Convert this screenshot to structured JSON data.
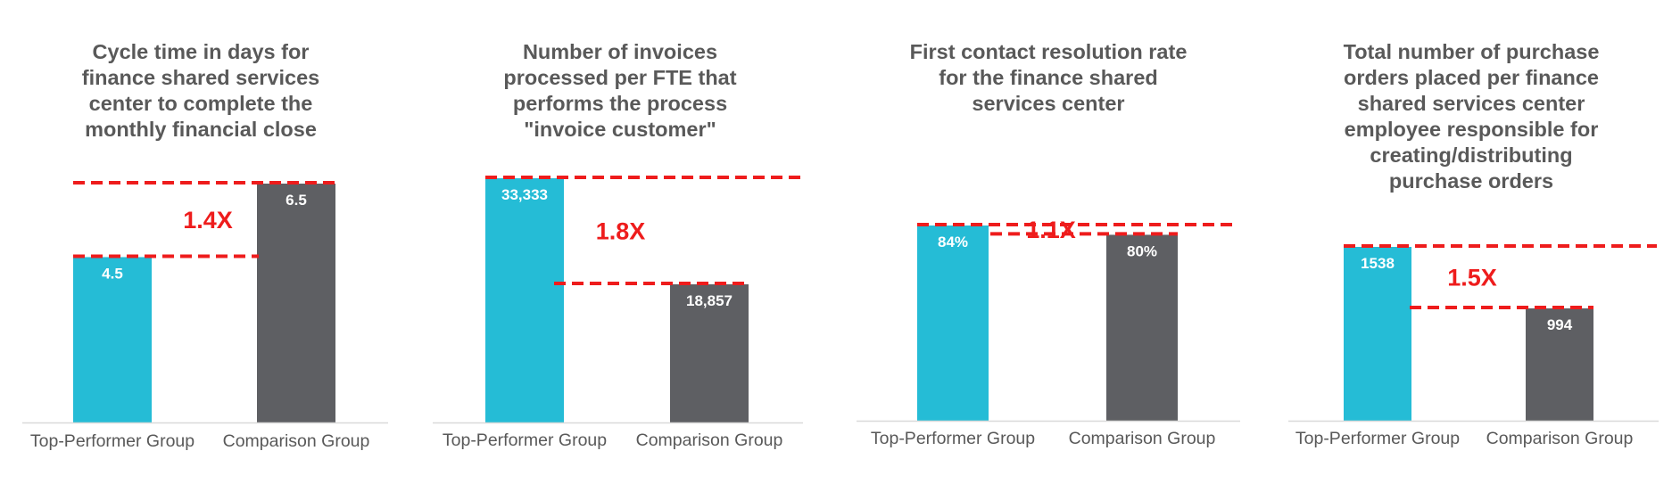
{
  "colors": {
    "top_performer": "#25BCD6",
    "comparison": "#5E5F63",
    "guide_line": "#EE1C1C",
    "ratio_text": "#EE1C1C",
    "title_text": "#595959",
    "axis": "#D9D9D9"
  },
  "chart_data": [
    {
      "type": "bar",
      "title": "Cycle time in days for finance shared services center to complete the monthly financial close",
      "title_lines": [
        "Cycle time in days for",
        "finance shared services",
        "center to complete the",
        "monthly financial close"
      ],
      "categories": [
        "Top-Performer Group",
        "Comparison Group"
      ],
      "values": [
        4.5,
        6.5
      ],
      "value_labels": [
        "4.5",
        "6.5"
      ],
      "ratio_label": "1.4X"
    },
    {
      "type": "bar",
      "title": "Number of invoices processed per FTE that performs the process \"invoice customer\"",
      "title_lines": [
        "Number of invoices",
        "processed per FTE that",
        "performs the process",
        "\"invoice customer\""
      ],
      "categories": [
        "Top-Performer Group",
        "Comparison Group"
      ],
      "values": [
        33333,
        18857
      ],
      "value_labels": [
        "33,333",
        "18,857"
      ],
      "ratio_label": "1.8X"
    },
    {
      "type": "bar",
      "title": "First contact resolution rate for the finance shared services center",
      "title_lines": [
        "First contact resolution rate",
        "for the finance shared",
        "services center"
      ],
      "categories": [
        "Top-Performer Group",
        "Comparison Group"
      ],
      "values": [
        84,
        80
      ],
      "value_labels": [
        "84%",
        "80%"
      ],
      "ratio_label": "1.1X"
    },
    {
      "type": "bar",
      "title": "Total number of purchase orders placed per finance shared services center employee responsible for creating/distributing purchase orders",
      "title_lines": [
        "Total number of purchase",
        "orders placed per finance",
        "shared services center",
        "employee responsible for",
        "creating/distributing",
        "purchase orders"
      ],
      "categories": [
        "Top-Performer Group",
        "Comparison Group"
      ],
      "values": [
        1538,
        994
      ],
      "value_labels": [
        "1538",
        "994"
      ],
      "ratio_label": "1.5X"
    }
  ]
}
